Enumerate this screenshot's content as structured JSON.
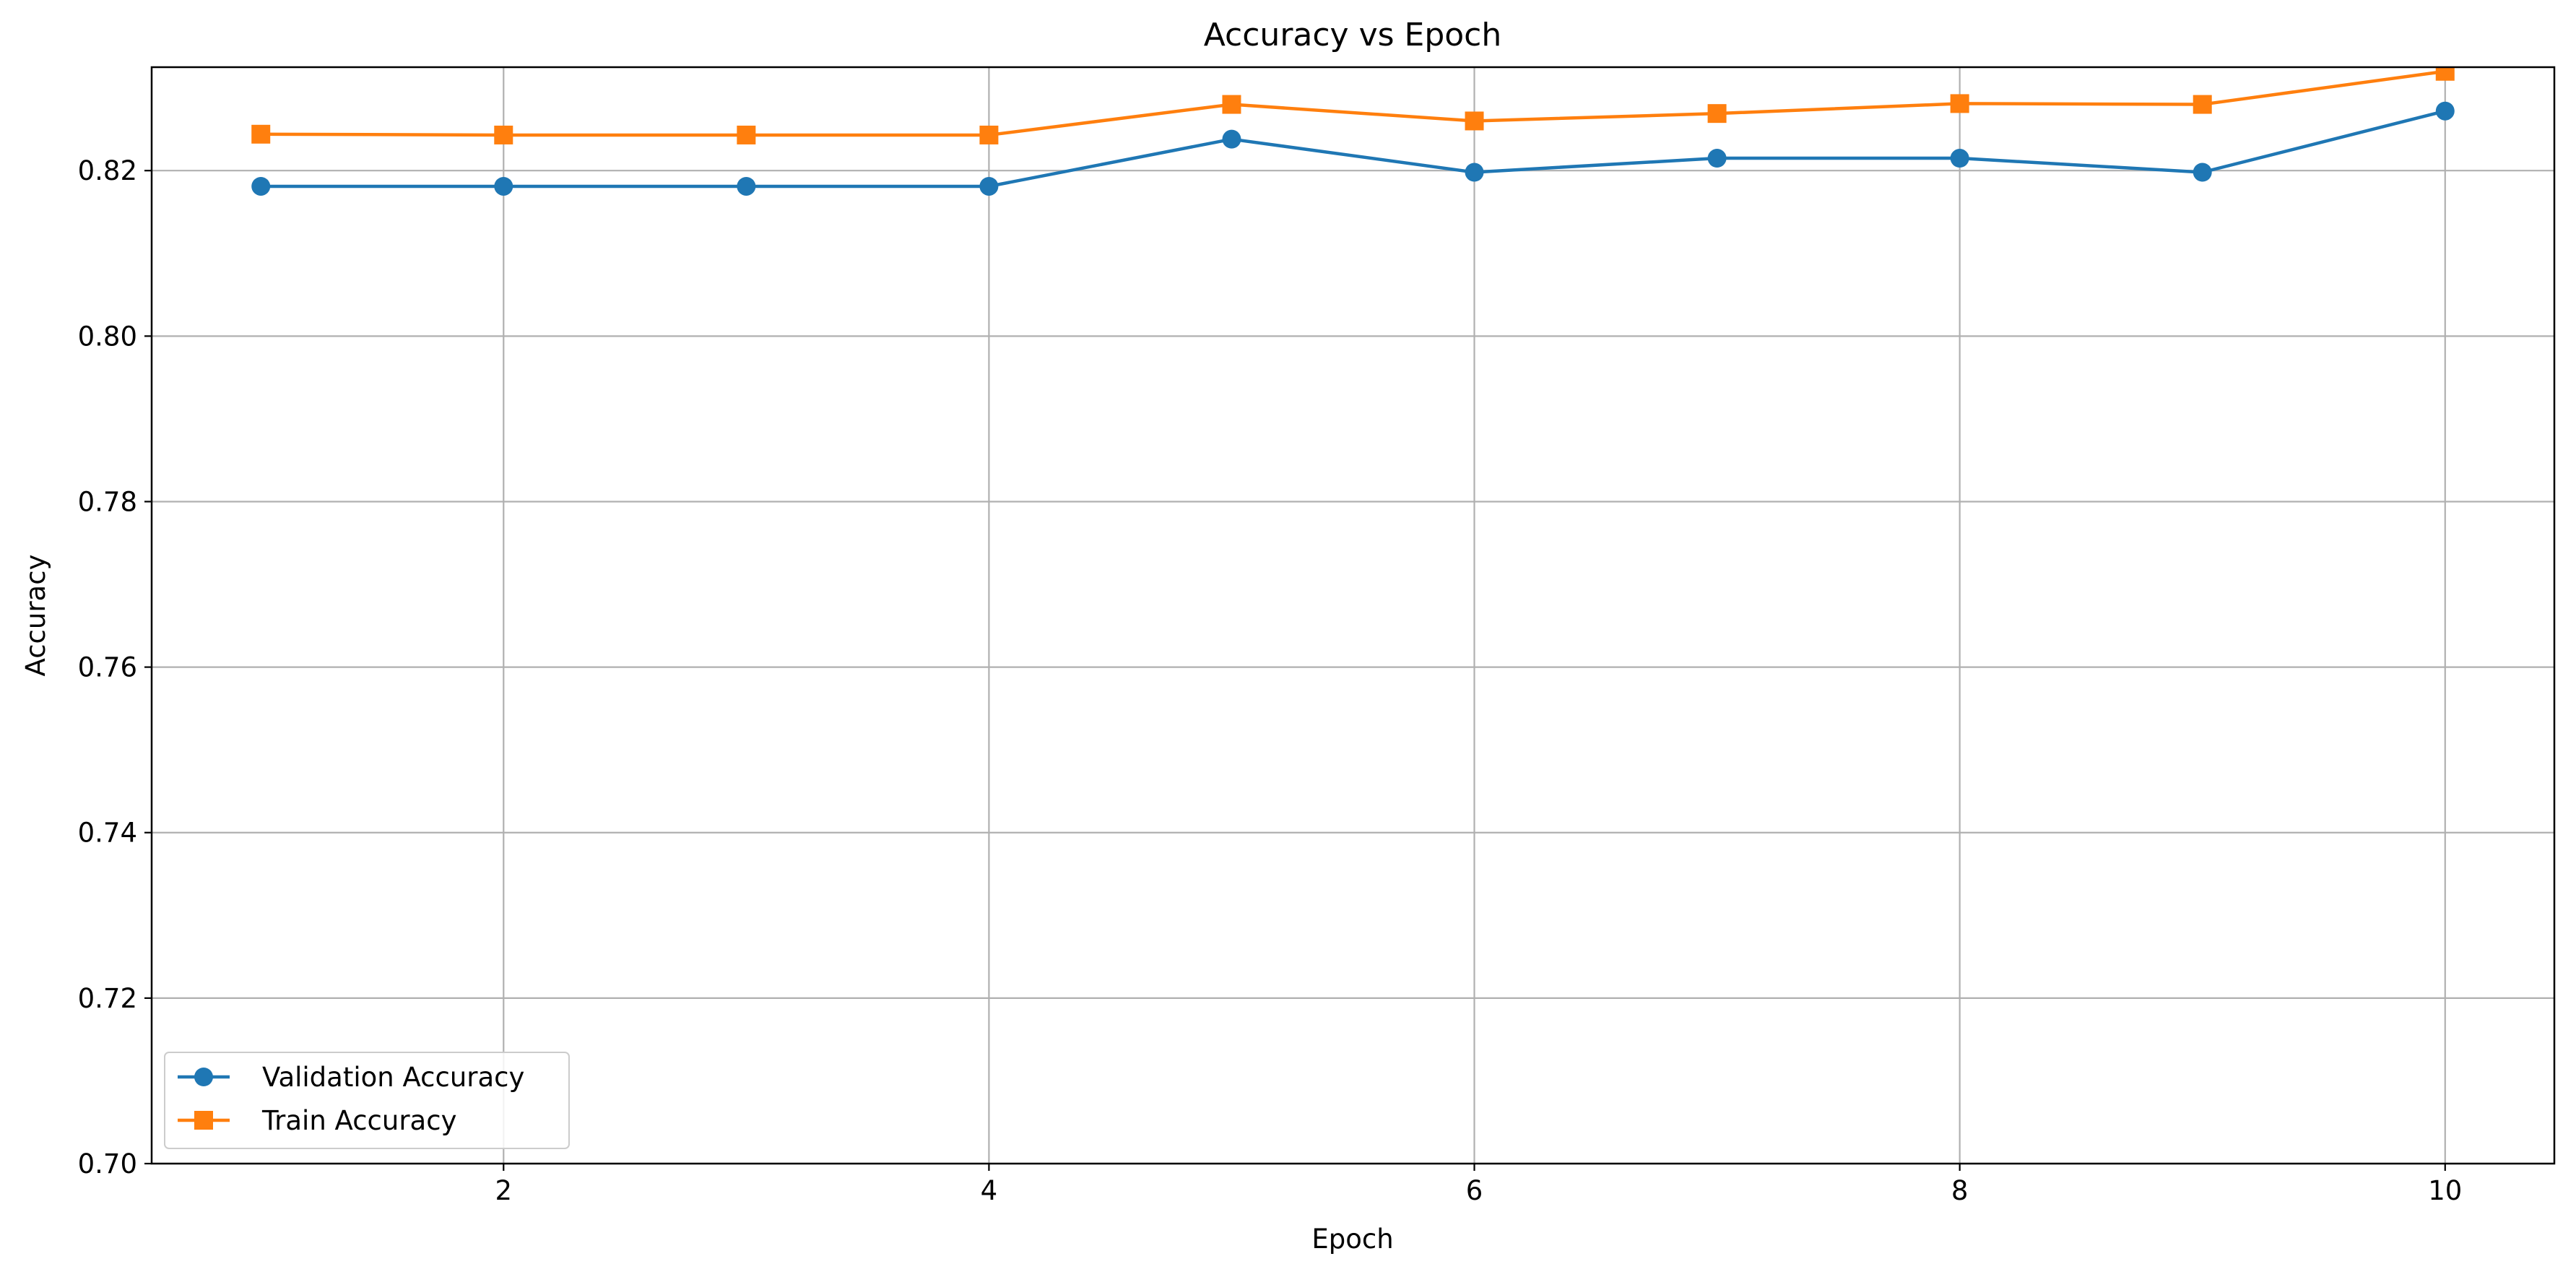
{
  "chart_data": {
    "type": "line",
    "title": "Accuracy vs Epoch",
    "xlabel": "Epoch",
    "ylabel": "Accuracy",
    "xlim": [
      0.55,
      10.45
    ],
    "ylim": [
      0.7,
      0.8325
    ],
    "x_ticks": [
      2,
      4,
      6,
      8,
      10
    ],
    "x_tick_labels": [
      "2",
      "4",
      "6",
      "8",
      "10"
    ],
    "y_ticks": [
      0.7,
      0.72,
      0.74,
      0.76,
      0.78,
      0.8,
      0.82
    ],
    "y_tick_labels": [
      "0.70",
      "0.72",
      "0.74",
      "0.76",
      "0.78",
      "0.80",
      "0.82"
    ],
    "grid": true,
    "legend_position": "lower-left",
    "x": [
      1,
      2,
      3,
      4,
      5,
      6,
      7,
      8,
      9,
      10
    ],
    "series": [
      {
        "name": "Validation Accuracy",
        "marker": "circle",
        "color": "#1f77b4",
        "values": [
          0.8181,
          0.8181,
          0.8181,
          0.8181,
          0.8238,
          0.8198,
          0.8215,
          0.8215,
          0.8198,
          0.8272
        ]
      },
      {
        "name": "Train Accuracy",
        "marker": "square",
        "color": "#ff7f0e",
        "values": [
          0.8244,
          0.8243,
          0.8243,
          0.8243,
          0.828,
          0.826,
          0.8269,
          0.8281,
          0.828,
          0.832
        ]
      }
    ]
  }
}
